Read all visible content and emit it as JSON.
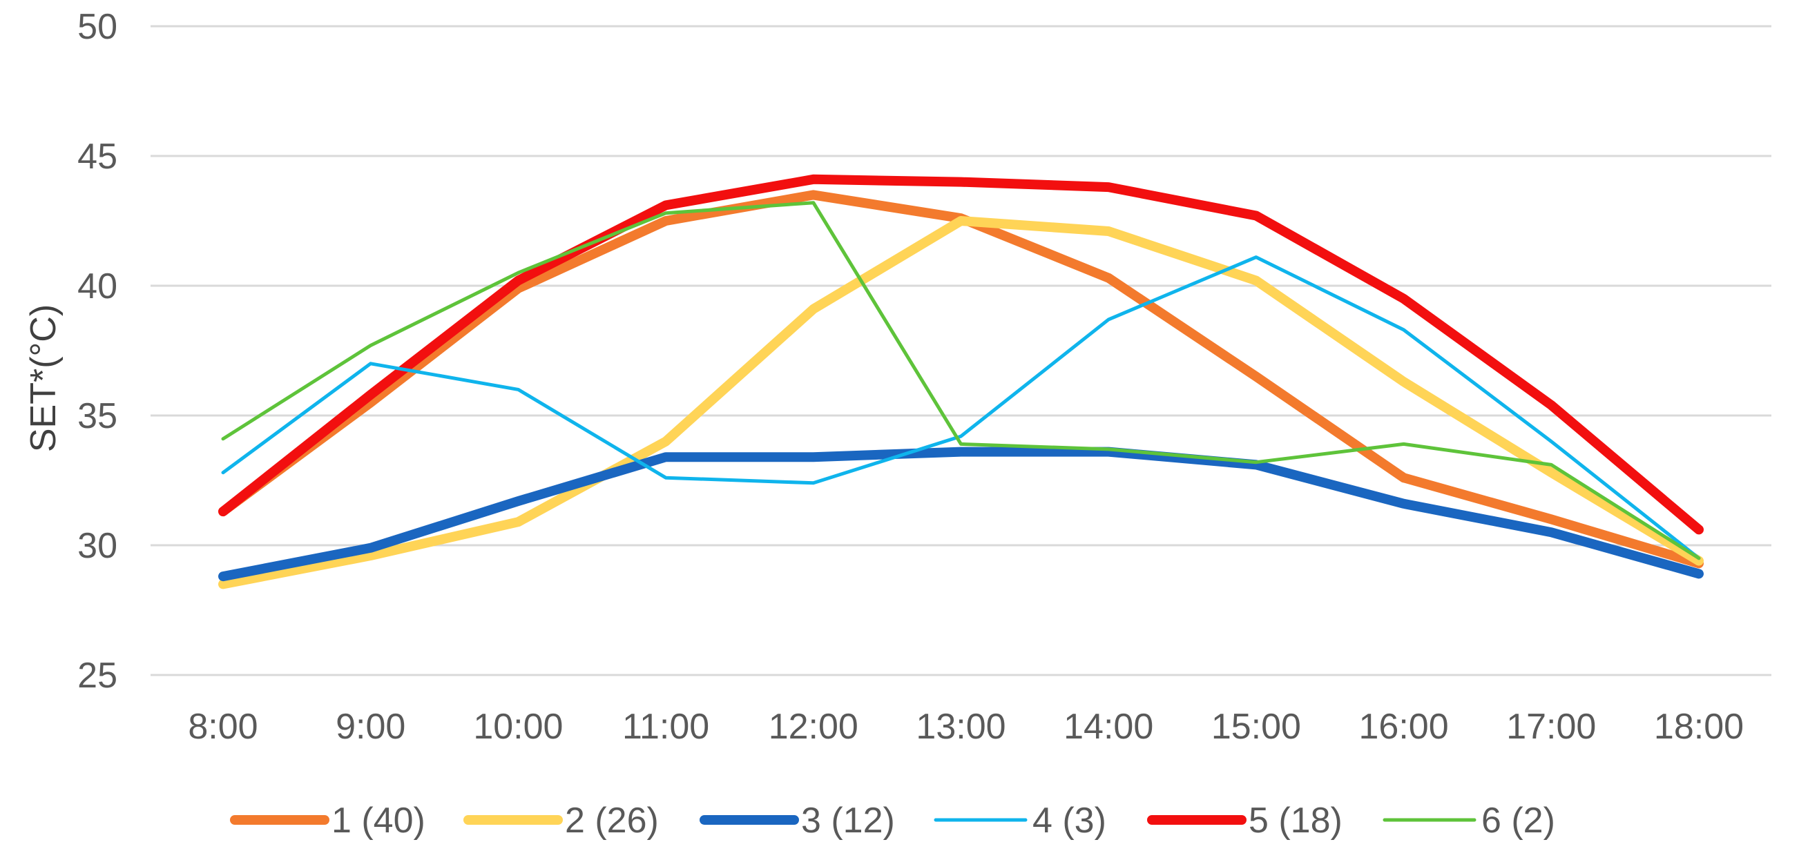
{
  "chart_data": {
    "type": "line",
    "title": "",
    "xlabel": "",
    "ylabel": "SET*(°C)",
    "ylim": [
      25,
      50
    ],
    "yticks": [
      25,
      30,
      35,
      40,
      45,
      50
    ],
    "grid": true,
    "legend_position": "bottom",
    "categories": [
      "8:00",
      "9:00",
      "10:00",
      "11:00",
      "12:00",
      "13:00",
      "14:00",
      "15:00",
      "16:00",
      "17:00",
      "18:00"
    ],
    "series": [
      {
        "name": "1 (40)",
        "color": "#f37a2d",
        "line_weight": "thick",
        "values": [
          31.3,
          35.5,
          39.9,
          42.5,
          43.5,
          42.6,
          40.3,
          36.5,
          32.6,
          31.0,
          29.3
        ]
      },
      {
        "name": "2 (26)",
        "color": "#ffd457",
        "line_weight": "thick",
        "values": [
          28.5,
          29.6,
          30.9,
          34.0,
          39.1,
          42.5,
          42.1,
          40.2,
          36.3,
          32.8,
          29.4
        ]
      },
      {
        "name": "3 (12)",
        "color": "#1a66c0",
        "line_weight": "thick",
        "values": [
          28.8,
          29.9,
          31.7,
          33.4,
          33.4,
          33.6,
          33.6,
          33.1,
          31.6,
          30.5,
          28.9
        ]
      },
      {
        "name": "4 (3)",
        "color": "#0fb4ec",
        "line_weight": "thin",
        "values": [
          32.8,
          37.0,
          36.0,
          32.6,
          32.4,
          34.2,
          38.7,
          41.1,
          38.3,
          34.0,
          29.5
        ]
      },
      {
        "name": "5 (18)",
        "color": "#f20f0f",
        "line_weight": "thick",
        "values": [
          31.3,
          35.8,
          40.2,
          43.1,
          44.1,
          44.0,
          43.8,
          42.7,
          39.5,
          35.4,
          30.6
        ]
      },
      {
        "name": "6 (2)",
        "color": "#5ec33a",
        "line_weight": "thin",
        "values": [
          34.1,
          37.7,
          40.5,
          42.8,
          43.2,
          33.9,
          33.7,
          33.2,
          33.9,
          33.1,
          29.5
        ]
      }
    ]
  }
}
